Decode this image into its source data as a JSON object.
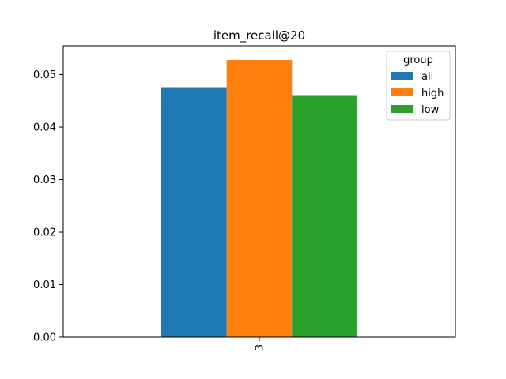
{
  "chart_data": {
    "type": "bar",
    "title": "item_recall@20",
    "xlabel": "",
    "ylabel": "",
    "categories": [
      "3"
    ],
    "x_tick_rotation": "vertical",
    "ylim": [
      0,
      0.0555
    ],
    "yticks": [
      0.0,
      0.01,
      0.02,
      0.03,
      0.04,
      0.05
    ],
    "ytick_labels": [
      "0.00",
      "0.01",
      "0.02",
      "0.03",
      "0.04",
      "0.05"
    ],
    "grid": false,
    "legend": {
      "title": "group",
      "placement": "top-right"
    },
    "series": [
      {
        "name": "all",
        "color": "#1f77b4",
        "values": [
          0.0476
        ]
      },
      {
        "name": "high",
        "color": "#ff7f0e",
        "values": [
          0.0528
        ]
      },
      {
        "name": "low",
        "color": "#2ca02c",
        "values": [
          0.0461
        ]
      }
    ]
  }
}
